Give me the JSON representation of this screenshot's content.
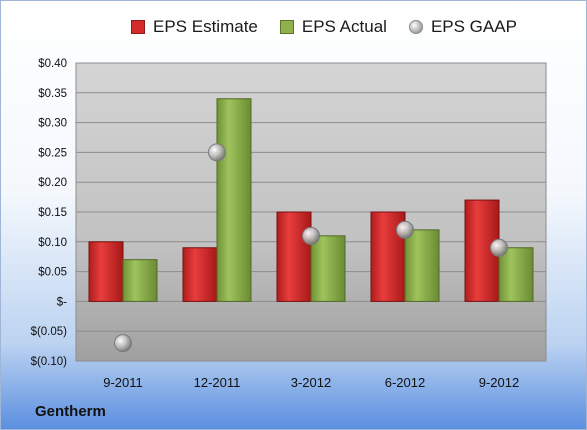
{
  "company": "Gentherm",
  "colors": {
    "estimate": "#d42c2c",
    "actual": "#8eb14c",
    "gaap": "#b5b5b5"
  },
  "chart_data": {
    "type": "bar",
    "title": "",
    "xlabel": "",
    "ylabel": "",
    "categories": [
      "9-2011",
      "12-2011",
      "3-2012",
      "6-2012",
      "9-2012"
    ],
    "series": [
      {
        "name": "EPS Estimate",
        "kind": "bar",
        "values": [
          0.1,
          0.09,
          0.15,
          0.15,
          0.17
        ]
      },
      {
        "name": "EPS Actual",
        "kind": "bar",
        "values": [
          0.07,
          0.34,
          0.11,
          0.12,
          0.09
        ]
      },
      {
        "name": "EPS GAAP",
        "kind": "marker",
        "values": [
          -0.07,
          0.25,
          0.11,
          0.12,
          0.09
        ]
      }
    ],
    "ylim": [
      -0.1,
      0.4
    ],
    "yticks": [
      0.4,
      0.35,
      0.3,
      0.25,
      0.2,
      0.15,
      0.1,
      0.05,
      0,
      -0.05,
      -0.1
    ],
    "ytick_labels": [
      "$0.40",
      "$0.35",
      "$0.30",
      "$0.25",
      "$0.20",
      "$0.15",
      "$0.10",
      "$0.05",
      "$-",
      "$(0.05)",
      "$(0.10)"
    ],
    "grid": true,
    "legend": "top"
  }
}
